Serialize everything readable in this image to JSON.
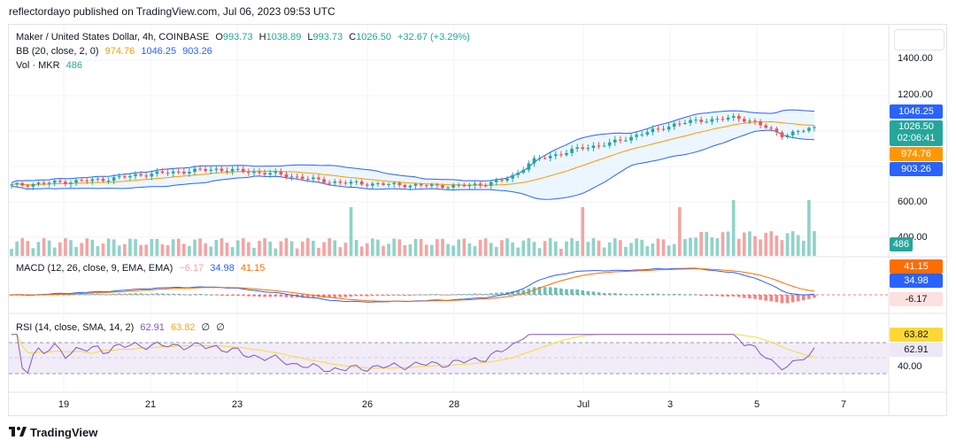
{
  "header": {
    "published": "reflectordayo published on TradingView.com, Jul 06, 2023 09:53 UTC"
  },
  "symbol": {
    "name": "Maker / United States Dollar, 4h, COINBASE",
    "o_label": "O",
    "o": "993.73",
    "h_label": "H",
    "h": "1038.89",
    "l_label": "L",
    "l": "993.73",
    "c_label": "C",
    "c": "1026.50",
    "change": "+32.67 (+3.29%)"
  },
  "bb": {
    "label": "BB (20, close, 2, 0)",
    "basis": "974.76",
    "upper": "1046.25",
    "lower": "903.26"
  },
  "vol": {
    "label": "Vol · MKR",
    "value": "486"
  },
  "macd": {
    "label": "MACD (12, 26, close, 9, EMA, EMA)",
    "hist": "−6.17",
    "macd": "34.98",
    "signal": "41.15"
  },
  "rsi": {
    "label": "RSI (14, close, SMA, 14, 2)",
    "rsi": "62.91",
    "sma": "63.82",
    "v1": "∅",
    "v2": "∅"
  },
  "price_axis": [
    "1400.00",
    "1200.00",
    "600.00",
    "400.00"
  ],
  "rsi_axis": [
    "40.00"
  ],
  "tags": {
    "bb_upper": "1046.25",
    "last_price": "1026.50",
    "countdown": "02:06:41",
    "bb_basis": "974.76",
    "bb_lower": "903.26",
    "volume": "486",
    "macd_signal": "41.15",
    "macd_line": "34.98",
    "macd_hist": "-6.17",
    "rsi_sma": "63.82",
    "rsi_value": "62.91"
  },
  "time_axis": [
    "19",
    "21",
    "23",
    "26",
    "28",
    "Jul",
    "3",
    "5",
    "7"
  ],
  "footer": {
    "brand": "TradingView"
  },
  "colors": {
    "up": "#26a69a",
    "down": "#ef5350",
    "bb_band": "#2962ff",
    "bb_basis": "#ff9800",
    "vol_up": "#8fd3c8",
    "vol_down": "#f4a4a4",
    "rsi": "#7e57c2",
    "rsi_sma": "#fdd835",
    "rsi_fill": "#ede7f6"
  },
  "chart_data": {
    "type": "candlestick",
    "title": "Maker / United States Dollar, 4h, COINBASE",
    "x": [
      "19",
      "21",
      "23",
      "26",
      "28",
      "Jul",
      "3",
      "5",
      "7"
    ],
    "ylim": [
      400,
      1400
    ],
    "price_close_path": [
      700,
      705,
      712,
      718,
      722,
      728,
      735,
      745,
      758,
      765,
      772,
      778,
      785,
      790,
      784,
      776,
      770,
      762,
      748,
      735,
      722,
      715,
      712,
      708,
      705,
      702,
      700,
      698,
      696,
      700,
      708,
      722,
      760,
      835,
      860,
      880,
      905,
      920,
      935,
      960,
      990,
      1010,
      1040,
      1055,
      1065,
      1070,
      1080,
      1060,
      1020,
      980,
      1000,
      1026.5
    ],
    "bollinger": {
      "upper": 1046.25,
      "basis": 974.76,
      "lower": 903.26
    },
    "volume_last": 486,
    "macd": {
      "macd": 34.98,
      "signal": 41.15,
      "histogram": -6.17
    },
    "rsi": {
      "value": 62.91,
      "sma": 63.82,
      "levels": [
        70,
        50,
        30
      ]
    }
  }
}
